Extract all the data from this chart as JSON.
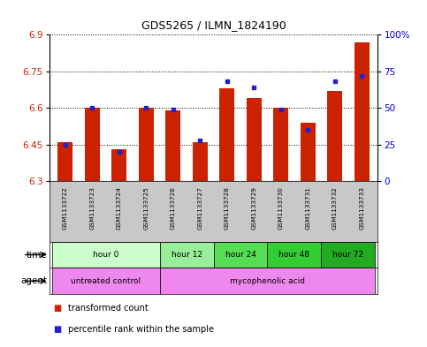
{
  "title": "GDS5265 / ILMN_1824190",
  "samples": [
    "GSM1133722",
    "GSM1133723",
    "GSM1133724",
    "GSM1133725",
    "GSM1133726",
    "GSM1133727",
    "GSM1133728",
    "GSM1133729",
    "GSM1133730",
    "GSM1133731",
    "GSM1133732",
    "GSM1133733"
  ],
  "red_values": [
    6.46,
    6.6,
    6.43,
    6.6,
    6.59,
    6.46,
    6.68,
    6.64,
    6.6,
    6.54,
    6.67,
    6.87
  ],
  "blue_values_pct": [
    25,
    50,
    20,
    50,
    49,
    28,
    68,
    64,
    49,
    35,
    68,
    72
  ],
  "ylim_left": [
    6.3,
    6.9
  ],
  "yticks_left": [
    6.3,
    6.45,
    6.6,
    6.75,
    6.9
  ],
  "yticks_right": [
    0,
    25,
    50,
    75,
    100
  ],
  "bar_bottom": 6.3,
  "bar_width": 0.55,
  "red_color": "#cc2200",
  "blue_color": "#2222cc",
  "bg_plot": "#ffffff",
  "bg_sample_row": "#c8c8c8",
  "time_groups": [
    {
      "label": "hour 0",
      "start": 0,
      "end": 4,
      "bg": "#ccffcc"
    },
    {
      "label": "hour 12",
      "start": 4,
      "end": 6,
      "bg": "#99ee99"
    },
    {
      "label": "hour 24",
      "start": 6,
      "end": 8,
      "bg": "#55dd55"
    },
    {
      "label": "hour 48",
      "start": 8,
      "end": 10,
      "bg": "#33cc33"
    },
    {
      "label": "hour 72",
      "start": 10,
      "end": 12,
      "bg": "#22aa22"
    }
  ],
  "agent_groups": [
    {
      "label": "untreated control",
      "start": 0,
      "end": 4,
      "bg": "#ee88ee"
    },
    {
      "label": "mycophenolic acid",
      "start": 4,
      "end": 12,
      "bg": "#ee88ee"
    }
  ],
  "legend_red": "transformed count",
  "legend_blue": "percentile rank within the sample",
  "right_axis_label_color": "#0000cc",
  "left_axis_label_color": "#cc2200"
}
